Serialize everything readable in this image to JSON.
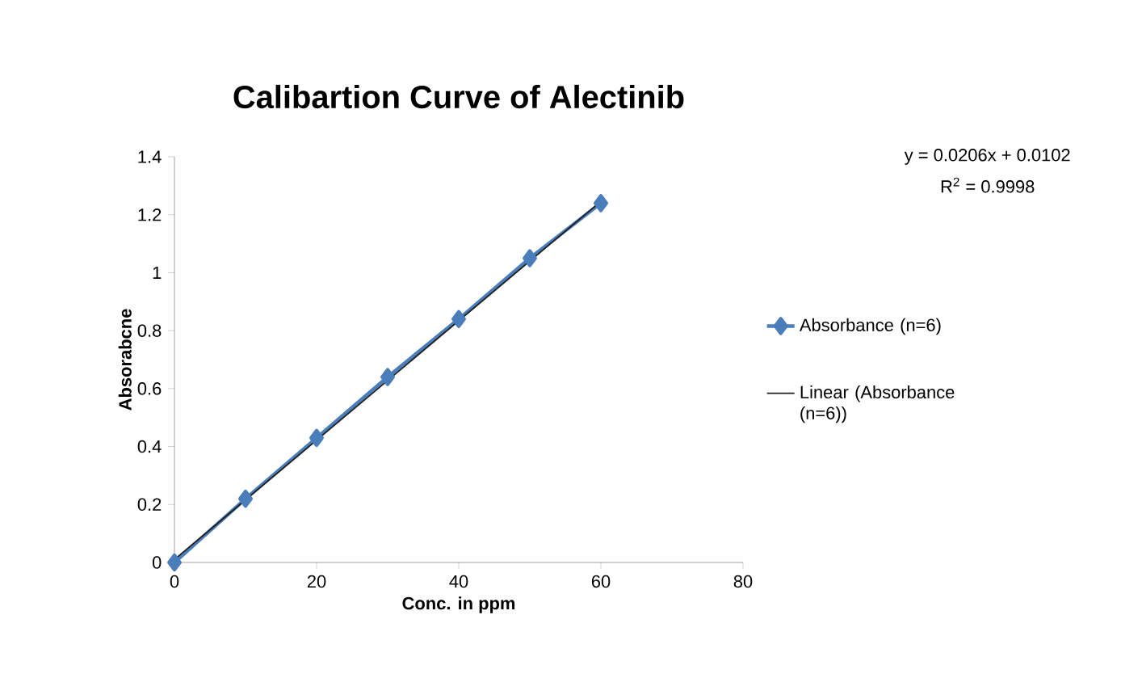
{
  "chart_data": {
    "type": "line",
    "title": "Calibartion Curve of Alectinib",
    "xlabel": "Conc. in ppm",
    "ylabel": "Absorabcne",
    "x": [
      0,
      10,
      20,
      30,
      40,
      50,
      60
    ],
    "series": [
      {
        "name": "Absorbance (n=6)",
        "color": "#4a7ebb",
        "values": [
          0,
          0.22,
          0.43,
          0.64,
          0.84,
          1.05,
          1.24
        ],
        "marker": "diamond"
      },
      {
        "name": "Linear (Absorbance (n=6))",
        "color": "#1f1f1f",
        "type": "line",
        "x": [
          0,
          60
        ],
        "values": [
          0.0102,
          1.2462
        ],
        "marker": "none"
      }
    ],
    "annotations": [
      "y = 0.0206x + 0.0102",
      "R$^{2}$ = 0.9998"
    ],
    "xlim": [
      0,
      80
    ],
    "ylim": [
      0,
      1.4
    ],
    "xticks": [
      0,
      20,
      40,
      60,
      80
    ],
    "yticks": [
      0,
      0.2,
      0.4,
      0.6,
      0.8,
      1,
      1.2,
      1.4
    ],
    "legend": "right",
    "grid": false,
    "line_style": "solid"
  }
}
